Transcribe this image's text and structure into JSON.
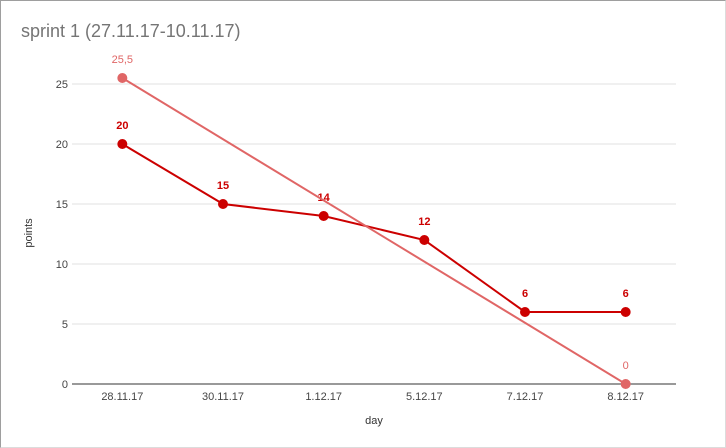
{
  "chart_data": {
    "type": "line",
    "title": "sprint 1 (27.11.17-10.11.17)",
    "xlabel": "day",
    "ylabel": "points",
    "categories": [
      "28.11.17",
      "30.11.17",
      "1.12.17",
      "5.12.17",
      "7.12.17",
      "8.12.17"
    ],
    "ylim": [
      0,
      25
    ],
    "yticks": [
      0,
      5,
      10,
      15,
      20,
      25
    ],
    "grid": true,
    "legend": "none",
    "series": [
      {
        "values": [
          20,
          15,
          14,
          12,
          6,
          6
        ],
        "labels": [
          "20",
          "15",
          "14",
          "12",
          "6",
          "6"
        ],
        "color": "#cc0000",
        "markers": "all"
      },
      {
        "points": [
          {
            "index": 0,
            "value": 25.5
          },
          {
            "index": 5,
            "value": 0
          }
        ],
        "labels": [
          "25,5",
          "0"
        ],
        "color": "#e06666",
        "markers": "endpoints"
      }
    ]
  }
}
